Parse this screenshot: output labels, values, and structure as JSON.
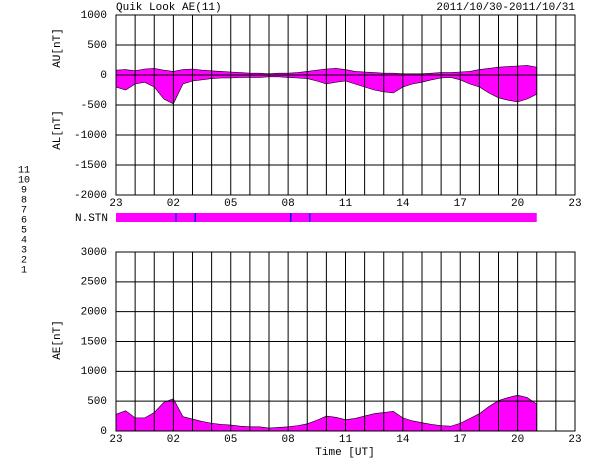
{
  "chart_data": [
    {
      "type": "area",
      "title": "Quik Look AE(11)",
      "date_range": "2011/10/30-2011/10/31",
      "ylabels": [
        "AU[nT]",
        "AL[nT]"
      ],
      "xlim": [
        0,
        24
      ],
      "xticks": [
        {
          "value": 0,
          "label": "23"
        },
        {
          "value": 1,
          "label": null
        },
        {
          "value": 2,
          "label": null
        },
        {
          "value": 3,
          "label": "02"
        },
        {
          "value": 4,
          "label": null
        },
        {
          "value": 5,
          "label": null
        },
        {
          "value": 6,
          "label": "05"
        },
        {
          "value": 7,
          "label": null
        },
        {
          "value": 8,
          "label": null
        },
        {
          "value": 9,
          "label": "08"
        },
        {
          "value": 10,
          "label": null
        },
        {
          "value": 11,
          "label": null
        },
        {
          "value": 12,
          "label": "11"
        },
        {
          "value": 13,
          "label": null
        },
        {
          "value": 14,
          "label": null
        },
        {
          "value": 15,
          "label": "14"
        },
        {
          "value": 16,
          "label": null
        },
        {
          "value": 17,
          "label": null
        },
        {
          "value": 18,
          "label": "17"
        },
        {
          "value": 19,
          "label": null
        },
        {
          "value": 20,
          "label": null
        },
        {
          "value": 21,
          "label": "20"
        },
        {
          "value": 22,
          "label": null
        },
        {
          "value": 23,
          "label": null
        },
        {
          "value": 24,
          "label": "23"
        }
      ],
      "ylim": [
        -2000,
        1000
      ],
      "yticks": [
        -2000,
        -1500,
        -1000,
        -500,
        0,
        500,
        1000
      ],
      "grid": true,
      "x": [
        0,
        0.5,
        1,
        1.5,
        2,
        2.5,
        3,
        3.5,
        4,
        4.5,
        5,
        5.5,
        6,
        6.5,
        7,
        7.5,
        8,
        8.5,
        9,
        9.5,
        10,
        10.5,
        11,
        11.5,
        12,
        12.5,
        13,
        13.5,
        14,
        14.5,
        15,
        15.5,
        16,
        16.5,
        17,
        17.5,
        18,
        18.5,
        19,
        19.5,
        20,
        20.5,
        21,
        21.5,
        22
      ],
      "series": [
        {
          "color": "#ff00ff",
          "values": [
            80,
            90,
            70,
            100,
            110,
            80,
            60,
            90,
            100,
            80,
            70,
            60,
            50,
            40,
            30,
            30,
            20,
            30,
            30,
            40,
            60,
            80,
            100,
            110,
            90,
            60,
            50,
            40,
            30,
            30,
            20,
            20,
            20,
            30,
            40,
            40,
            50,
            60,
            90,
            110,
            130,
            140,
            150,
            160,
            130
          ]
        },
        {
          "color": "#ff00ff",
          "values": [
            -200,
            -250,
            -150,
            -120,
            -200,
            -400,
            -480,
            -150,
            -100,
            -80,
            -60,
            -50,
            -50,
            -40,
            -40,
            -40,
            -30,
            -30,
            -40,
            -50,
            -60,
            -100,
            -150,
            -120,
            -100,
            -150,
            -200,
            -250,
            -280,
            -300,
            -200,
            -150,
            -120,
            -80,
            -50,
            -40,
            -80,
            -150,
            -200,
            -300,
            -380,
            -420,
            -450,
            -400,
            -320
          ]
        }
      ],
      "n_stn": {
        "label": "N.STN",
        "segments": [
          {
            "start": 0,
            "end": 3.1,
            "count": 10
          },
          {
            "start": 3.1,
            "end": 3.18,
            "count": 9
          },
          {
            "start": 3.18,
            "end": 4.1,
            "count": 10
          },
          {
            "start": 4.1,
            "end": 4.18,
            "count": 9
          },
          {
            "start": 4.18,
            "end": 9.1,
            "count": 10
          },
          {
            "start": 9.1,
            "end": 9.18,
            "count": 9
          },
          {
            "start": 9.18,
            "end": 10.1,
            "count": 10
          },
          {
            "start": 10.1,
            "end": 10.18,
            "count": 9
          },
          {
            "start": 10.18,
            "end": 22,
            "count": 10
          }
        ]
      },
      "station_legend": [
        {
          "count": 11,
          "color": "#00e0ff"
        },
        {
          "count": 10,
          "color": "#ff00ff"
        },
        {
          "count": 9,
          "color": "#0000ff"
        },
        {
          "count": 8,
          "color": "#e8e850"
        },
        {
          "count": 7,
          "color": "#c0e080"
        },
        {
          "count": 6,
          "color": "#ff0000"
        },
        {
          "count": 5,
          "color": "#d8d8d8"
        },
        {
          "count": 4,
          "color": "#a0a0a0"
        },
        {
          "count": 3,
          "color": "#008080"
        },
        {
          "count": 2,
          "color": "#800080"
        },
        {
          "count": 1,
          "color": "#0000a0"
        }
      ]
    },
    {
      "type": "area",
      "ylabel": "AE[nT]",
      "xlabel": "Time [UT]",
      "xlim": [
        0,
        24
      ],
      "xticks": [
        {
          "value": 0,
          "label": "23"
        },
        {
          "value": 1,
          "label": null
        },
        {
          "value": 2,
          "label": null
        },
        {
          "value": 3,
          "label": "02"
        },
        {
          "value": 4,
          "label": null
        },
        {
          "value": 5,
          "label": null
        },
        {
          "value": 6,
          "label": "05"
        },
        {
          "value": 7,
          "label": null
        },
        {
          "value": 8,
          "label": null
        },
        {
          "value": 9,
          "label": "08"
        },
        {
          "value": 10,
          "label": null
        },
        {
          "value": 11,
          "label": null
        },
        {
          "value": 12,
          "label": "11"
        },
        {
          "value": 13,
          "label": null
        },
        {
          "value": 14,
          "label": null
        },
        {
          "value": 15,
          "label": "14"
        },
        {
          "value": 16,
          "label": null
        },
        {
          "value": 17,
          "label": null
        },
        {
          "value": 18,
          "label": "17"
        },
        {
          "value": 19,
          "label": null
        },
        {
          "value": 20,
          "label": null
        },
        {
          "value": 21,
          "label": "20"
        },
        {
          "value": 22,
          "label": null
        },
        {
          "value": 23,
          "label": null
        },
        {
          "value": 24,
          "label": "23"
        }
      ],
      "ylim": [
        0,
        3000
      ],
      "yticks": [
        0,
        500,
        1000,
        1500,
        2000,
        2500,
        3000
      ],
      "grid": true,
      "x": [
        0,
        0.5,
        1,
        1.5,
        2,
        2.5,
        3,
        3.5,
        4,
        4.5,
        5,
        5.5,
        6,
        6.5,
        7,
        7.5,
        8,
        8.5,
        9,
        9.5,
        10,
        10.5,
        11,
        11.5,
        12,
        12.5,
        13,
        13.5,
        14,
        14.5,
        15,
        15.5,
        16,
        16.5,
        17,
        17.5,
        18,
        18.5,
        19,
        19.5,
        20,
        20.5,
        21,
        21.5,
        22
      ],
      "series": [
        {
          "color": "#ff00ff",
          "values": [
            280,
            340,
            220,
            220,
            310,
            480,
            540,
            240,
            200,
            160,
            130,
            110,
            100,
            80,
            70,
            70,
            50,
            60,
            70,
            90,
            120,
            180,
            250,
            230,
            190,
            210,
            250,
            290,
            310,
            330,
            220,
            170,
            140,
            110,
            90,
            80,
            130,
            210,
            290,
            410,
            510,
            560,
            600,
            560,
            450
          ]
        }
      ]
    }
  ]
}
